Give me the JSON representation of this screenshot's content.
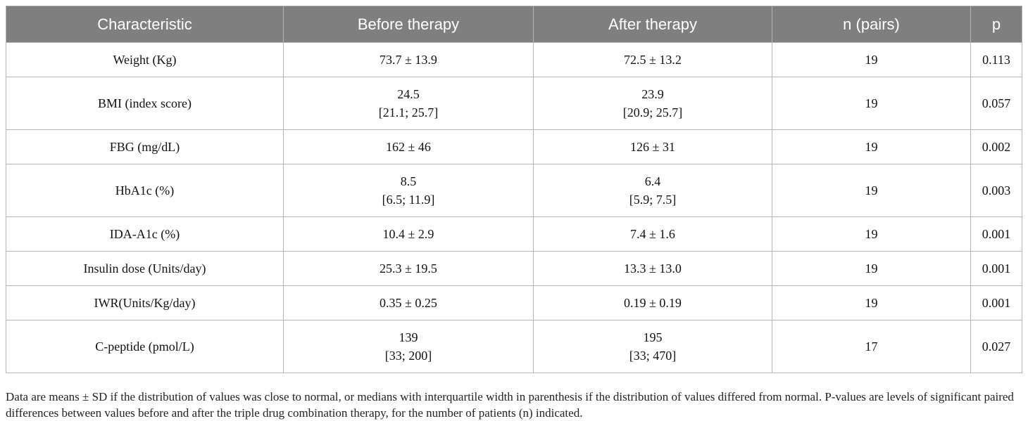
{
  "table": {
    "headers": [
      "Characteristic",
      "Before therapy",
      "After therapy",
      "n (pairs)",
      "p"
    ],
    "rows": [
      {
        "characteristic": "Weight (Kg)",
        "before": [
          "73.7 ± 13.9"
        ],
        "after": [
          "72.5 ± 13.2"
        ],
        "n": "19",
        "p": "0.113"
      },
      {
        "characteristic": "BMI (index score)",
        "before": [
          "24.5",
          "[21.1; 25.7]"
        ],
        "after": [
          "23.9",
          "[20.9; 25.7]"
        ],
        "n": "19",
        "p": "0.057"
      },
      {
        "characteristic": "FBG (mg/dL)",
        "before": [
          "162 ± 46"
        ],
        "after": [
          "126 ± 31"
        ],
        "n": "19",
        "p": "0.002"
      },
      {
        "characteristic": "HbA1c (%)",
        "before": [
          "8.5",
          "[6.5; 11.9]"
        ],
        "after": [
          "6.4",
          "[5.9; 7.5]"
        ],
        "n": "19",
        "p": "0.003"
      },
      {
        "characteristic": "IDA-A1c (%)",
        "before": [
          "10.4 ± 2.9"
        ],
        "after": [
          "7.4 ± 1.6"
        ],
        "n": "19",
        "p": "0.001"
      },
      {
        "characteristic": "Insulin dose (Units/day)",
        "before": [
          "25.3 ± 19.5"
        ],
        "after": [
          "13.3 ± 13.0"
        ],
        "n": "19",
        "p": "0.001"
      },
      {
        "characteristic": "IWR(Units/Kg/day)",
        "before": [
          "0.35 ± 0.25"
        ],
        "after": [
          "0.19 ± 0.19"
        ],
        "n": "19",
        "p": "0.001"
      },
      {
        "characteristic": "C-peptide (pmol/L)",
        "before": [
          "139",
          "[33; 200]"
        ],
        "after": [
          "195",
          "[33; 470]"
        ],
        "n": "17",
        "p": "0.027"
      }
    ]
  },
  "footnote": "Data are means ± SD if the distribution of values was close to normal, or medians with interquartile width in parenthesis if the distribution of values differed from normal. P-values are levels of significant paired differences between values before and after the triple drug combination therapy, for the number of patients (n) indicated."
}
